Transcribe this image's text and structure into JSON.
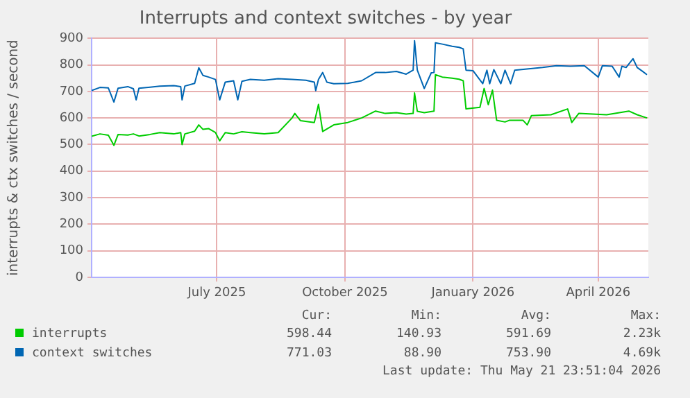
{
  "chart_data": {
    "type": "line",
    "title": "Interrupts and context switches - by year",
    "ylabel": "interrupts & ctx switches / second",
    "xlim": [
      "2025-04-16",
      "2026-05-21"
    ],
    "xticks": [
      {
        "value": "2025-07-15",
        "label": "July 2025"
      },
      {
        "value": "2025-10-15",
        "label": "October 2025"
      },
      {
        "value": "2026-01-15",
        "label": "January 2026"
      },
      {
        "value": "2026-04-15",
        "label": "April 2026"
      }
    ],
    "ylim": [
      0,
      900
    ],
    "yticks": [
      0,
      100,
      200,
      300,
      400,
      500,
      600,
      700,
      800,
      900
    ],
    "grid": true,
    "legend": "bottom",
    "marker": "none",
    "line_style": "solid",
    "series": [
      {
        "name": "interrupts",
        "color": "#00cc00",
        "x": [
          "2025-04-16",
          "2025-04-22",
          "2025-04-28",
          "2025-05-02",
          "2025-05-05",
          "2025-05-12",
          "2025-05-16",
          "2025-05-20",
          "2025-05-28",
          "2025-06-04",
          "2025-06-14",
          "2025-06-19",
          "2025-06-20",
          "2025-06-22",
          "2025-06-29",
          "2025-07-02",
          "2025-07-05",
          "2025-07-09",
          "2025-07-14",
          "2025-07-17",
          "2025-07-21",
          "2025-07-27",
          "2025-08-02",
          "2025-08-08",
          "2025-08-18",
          "2025-08-28",
          "2025-09-07",
          "2025-09-09",
          "2025-09-13",
          "2025-09-23",
          "2025-09-26",
          "2025-09-29",
          "2025-10-07",
          "2025-10-17",
          "2025-10-27",
          "2025-11-06",
          "2025-11-13",
          "2025-11-21",
          "2025-11-28",
          "2025-12-03",
          "2025-12-04",
          "2025-12-06",
          "2025-12-11",
          "2025-12-18",
          "2025-12-19",
          "2025-12-24",
          "2025-12-31",
          "2026-01-05",
          "2026-01-08",
          "2026-01-10",
          "2026-01-20",
          "2026-01-23",
          "2026-01-26",
          "2026-01-29",
          "2026-02-01",
          "2026-02-07",
          "2026-02-10",
          "2026-02-20",
          "2026-02-23",
          "2026-02-26",
          "2026-03-12",
          "2026-03-24",
          "2026-03-27",
          "2026-04-01",
          "2026-04-21",
          "2026-05-07",
          "2026-05-13",
          "2026-05-20"
        ],
        "values": [
          531,
          540,
          535,
          497,
          538,
          536,
          540,
          532,
          538,
          545,
          540,
          545,
          500,
          540,
          550,
          574,
          557,
          560,
          545,
          514,
          545,
          540,
          548,
          545,
          540,
          545,
          600,
          617,
          590,
          583,
          651,
          549,
          574,
          583,
          600,
          626,
          617,
          620,
          615,
          617,
          694,
          625,
          620,
          626,
          763,
          754,
          750,
          746,
          740,
          634,
          640,
          711,
          650,
          705,
          591,
          585,
          591,
          591,
          574,
          609,
          612,
          634,
          583,
          617,
          612,
          626,
          612,
          600
        ]
      },
      {
        "name": "context switches",
        "color": "#0066b3",
        "x": [
          "2025-04-16",
          "2025-04-22",
          "2025-04-28",
          "2025-05-02",
          "2025-05-05",
          "2025-05-12",
          "2025-05-16",
          "2025-05-18",
          "2025-05-20",
          "2025-05-28",
          "2025-06-04",
          "2025-06-14",
          "2025-06-19",
          "2025-06-20",
          "2025-06-22",
          "2025-06-29",
          "2025-07-02",
          "2025-07-05",
          "2025-07-09",
          "2025-07-14",
          "2025-07-17",
          "2025-07-21",
          "2025-07-27",
          "2025-07-30",
          "2025-08-02",
          "2025-08-08",
          "2025-08-18",
          "2025-08-28",
          "2025-09-07",
          "2025-09-17",
          "2025-09-23",
          "2025-09-24",
          "2025-09-26",
          "2025-09-29",
          "2025-10-02",
          "2025-10-07",
          "2025-10-17",
          "2025-10-27",
          "2025-11-06",
          "2025-11-13",
          "2025-11-21",
          "2025-11-28",
          "2025-12-03",
          "2025-12-04",
          "2025-12-06",
          "2025-12-11",
          "2025-12-16",
          "2025-12-18",
          "2025-12-19",
          "2025-12-24",
          "2025-12-31",
          "2026-01-05",
          "2026-01-08",
          "2026-01-10",
          "2026-01-15",
          "2026-01-22",
          "2026-01-25",
          "2026-01-27",
          "2026-01-30",
          "2026-02-04",
          "2026-02-07",
          "2026-02-11",
          "2026-02-14",
          "2026-02-24",
          "2026-03-06",
          "2026-03-16",
          "2026-03-26",
          "2026-04-05",
          "2026-04-15",
          "2026-04-18",
          "2026-04-25",
          "2026-04-30",
          "2026-05-02",
          "2026-05-05",
          "2026-05-10",
          "2026-05-13",
          "2026-05-17",
          "2026-05-20"
        ],
        "values": [
          703,
          715,
          713,
          660,
          712,
          718,
          710,
          668,
          712,
          716,
          720,
          722,
          718,
          668,
          720,
          730,
          789,
          760,
          754,
          745,
          668,
          735,
          740,
          668,
          738,
          745,
          742,
          748,
          745,
          742,
          735,
          703,
          745,
          771,
          735,
          729,
          730,
          740,
          771,
          771,
          775,
          765,
          780,
          891,
          780,
          711,
          770,
          771,
          883,
          878,
          870,
          866,
          860,
          780,
          778,
          729,
          780,
          729,
          782,
          729,
          780,
          729,
          780,
          785,
          790,
          797,
          795,
          797,
          754,
          797,
          795,
          754,
          795,
          790,
          823,
          790,
          775,
          763
        ]
      }
    ],
    "annotations": [
      "Cur:",
      "Min:",
      "Avg:",
      "Max:",
      "598.44",
      "140.93",
      "591.69",
      "2.23k",
      "771.03",
      "88.90",
      "753.90",
      "4.69k",
      "Last update: Thu May 21 23:51:04 2026"
    ]
  }
}
